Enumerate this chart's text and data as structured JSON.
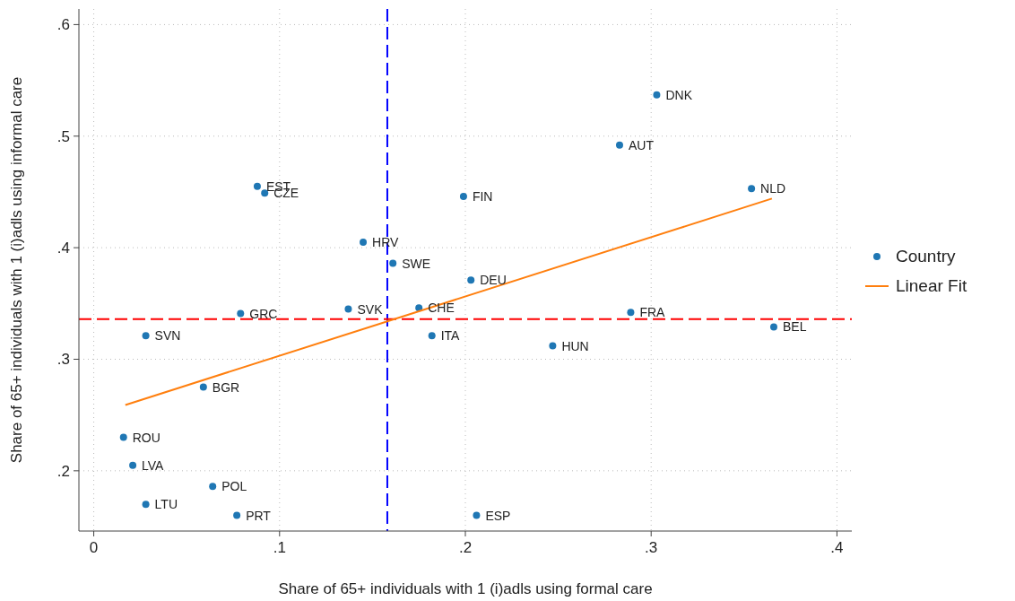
{
  "chart_data": {
    "type": "scatter",
    "xlabel": "Share of 65+ individuals with 1 (i)adls using formal care",
    "ylabel": "Share of 65+ individuals with 1 (i)adls using informal care",
    "xlim": [
      -0.008,
      0.408
    ],
    "ylim": [
      0.146,
      0.614
    ],
    "xticks": [
      0,
      {
        "value": 0.1,
        "label": ".1"
      },
      {
        "value": 0.2,
        "label": ".2"
      },
      {
        "value": 0.3,
        "label": ".3"
      },
      {
        "value": 0.4,
        "label": ".4"
      }
    ],
    "yticks": [
      {
        "value": 0.2,
        "label": ".2"
      },
      {
        "value": 0.3,
        "label": ".3"
      },
      {
        "value": 0.4,
        "label": ".4"
      },
      {
        "value": 0.5,
        "label": ".5"
      },
      {
        "value": 0.6,
        "label": ".6"
      }
    ],
    "grid": true,
    "legend": "right",
    "series": [
      {
        "name": "Country",
        "marker": "circle",
        "color": "#1f77b4",
        "x": [
          0.303,
          0.283,
          0.354,
          0.366,
          0.289,
          0.247,
          0.206,
          0.203,
          0.199,
          0.182,
          0.175,
          0.161,
          0.145,
          0.137,
          0.088,
          0.092,
          0.079,
          0.028,
          0.059,
          0.016,
          0.021,
          0.064,
          0.028,
          0.077
        ],
        "values": [
          0.537,
          0.492,
          0.453,
          0.329,
          0.342,
          0.312,
          0.16,
          0.371,
          0.446,
          0.321,
          0.346,
          0.386,
          0.405,
          0.345,
          0.455,
          0.449,
          0.341,
          0.321,
          0.275,
          0.23,
          0.205,
          0.186,
          0.17,
          0.16
        ]
      },
      {
        "name": "Linear Fit",
        "type": "line",
        "color": "#ff7f0e",
        "x": [
          0.017,
          0.365
        ],
        "values": [
          0.259,
          0.444
        ],
        "line_style": "solid"
      }
    ],
    "ref_lines": [
      {
        "axis": "x",
        "value": 0.158,
        "color": "#0000ff",
        "line_style": "dashed"
      },
      {
        "axis": "y",
        "value": 0.336,
        "color": "#ff0000",
        "line_style": "dashed"
      }
    ],
    "annotations": [
      {
        "text": "DNK",
        "x": 0.303,
        "y": 0.537
      },
      {
        "text": "AUT",
        "x": 0.283,
        "y": 0.492
      },
      {
        "text": "NLD",
        "x": 0.354,
        "y": 0.453
      },
      {
        "text": "BEL",
        "x": 0.366,
        "y": 0.329
      },
      {
        "text": "FRA",
        "x": 0.289,
        "y": 0.342
      },
      {
        "text": "HUN",
        "x": 0.247,
        "y": 0.312
      },
      {
        "text": "ESP",
        "x": 0.206,
        "y": 0.16
      },
      {
        "text": "DEU",
        "x": 0.203,
        "y": 0.371
      },
      {
        "text": "FIN",
        "x": 0.199,
        "y": 0.446
      },
      {
        "text": "ITA",
        "x": 0.182,
        "y": 0.321
      },
      {
        "text": "CHE",
        "x": 0.175,
        "y": 0.346
      },
      {
        "text": "SWE",
        "x": 0.161,
        "y": 0.386
      },
      {
        "text": "HRV",
        "x": 0.145,
        "y": 0.405
      },
      {
        "text": "SVK",
        "x": 0.137,
        "y": 0.345
      },
      {
        "text": "EST",
        "x": 0.088,
        "y": 0.455
      },
      {
        "text": "CZE",
        "x": 0.092,
        "y": 0.449
      },
      {
        "text": "GRC",
        "x": 0.079,
        "y": 0.341
      },
      {
        "text": "SVN",
        "x": 0.028,
        "y": 0.321
      },
      {
        "text": "BGR",
        "x": 0.059,
        "y": 0.275
      },
      {
        "text": "ROU",
        "x": 0.016,
        "y": 0.23
      },
      {
        "text": "LVA",
        "x": 0.021,
        "y": 0.205
      },
      {
        "text": "POL",
        "x": 0.064,
        "y": 0.186
      },
      {
        "text": "LTU",
        "x": 0.028,
        "y": 0.17
      },
      {
        "text": "PRT",
        "x": 0.077,
        "y": 0.16
      }
    ]
  }
}
